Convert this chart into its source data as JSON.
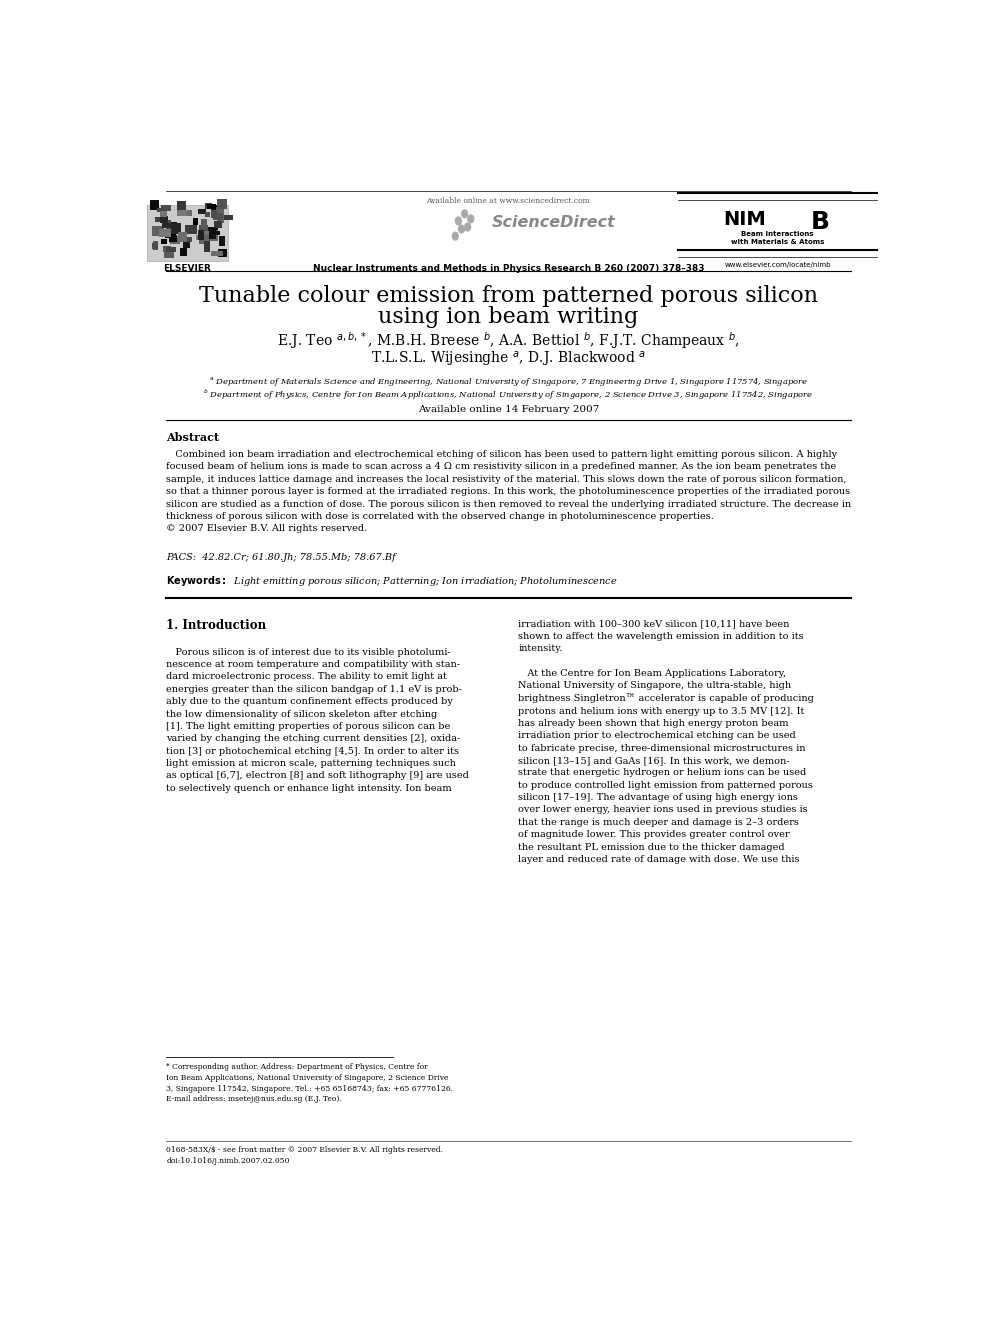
{
  "page_width": 9.92,
  "page_height": 13.23,
  "bg_color": "#ffffff",
  "text_color": "#000000",
  "header_available_online": "Available online at www.sciencedirect.com",
  "header_journal_name": "Nuclear Instruments and Methods in Physics Research B 260 (2007) 378–383",
  "header_sciencedirect": "ScienceDirect",
  "header_nimb_line2": "Beam Interactions",
  "header_nimb_line3": "with Materials & Atoms",
  "header_website": "www.elsevier.com/locate/nimb",
  "header_elsevier": "ELSEVIER",
  "title_line1": "Tunable colour emission from patterned porous silicon",
  "title_line2": "using ion beam writing",
  "authors_line1": "E.J. Teo $^{a,b,*}$, M.B.H. Breese $^{b}$, A.A. Bettiol $^{b}$, F.J.T. Champeaux $^{b}$,",
  "authors_line2": "T.L.S.L. Wijesinghe $^{a}$, D.J. Blackwood $^{a}$",
  "affil_a": "$^{a}$ Department of Materials Science and Engineering, National University of Singapore, 7 Engineering Drive 1, Singapore 117574, Singapore",
  "affil_b": "$^{b}$ Department of Physics, Centre for Ion Beam Applications, National University of Singapore, 2 Science Drive 3, Singapore 117542, Singapore",
  "available_online_date": "Available online 14 February 2007",
  "abstract_title": "Abstract",
  "abstract_line1": "   Combined ion beam irradiation and electrochemical etching of silicon has been used to pattern light emitting porous silicon. A highly",
  "abstract_line2": "focused beam of helium ions is made to scan across a 4 Ω cm resistivity silicon in a predefined manner. As the ion beam penetrates the",
  "abstract_line3": "sample, it induces lattice damage and increases the local resistivity of the material. This slows down the rate of porous silicon formation,",
  "abstract_line4": "so that a thinner porous layer is formed at the irradiated regions. In this work, the photoluminescence properties of the irradiated porous",
  "abstract_line5": "silicon are studied as a function of dose. The porous silicon is then removed to reveal the underlying irradiated structure. The decrease in",
  "abstract_line6": "thickness of porous silicon with dose is correlated with the observed change in photoluminescence properties.",
  "abstract_copyright": "© 2007 Elsevier B.V. All rights reserved.",
  "pacs": "PACS:  42.82.Cr; 61.80.Jh; 78.55.Mb; 78.67.Bf",
  "keywords_bold": "Keywords:",
  "keywords_rest": "  Light emitting porous silicon; Patterning; Ion irradiation; Photoluminescence",
  "section1_title": "1. Introduction",
  "col1_line1": "   Porous silicon is of interest due to its visible photolumi-",
  "col1_line2": "nescence at room temperature and compatibility with stan-",
  "col1_line3": "dard microelectronic process. The ability to emit light at",
  "col1_line4": "energies greater than the silicon bandgap of 1.1 eV is prob-",
  "col1_line5": "ably due to the quantum confinement effects produced by",
  "col1_line6": "the low dimensionality of silicon skeleton after etching",
  "col1_line7": "[1]. The light emitting properties of porous silicon can be",
  "col1_line8": "varied by changing the etching current densities [2], oxida-",
  "col1_line9": "tion [3] or photochemical etching [4,5]. In order to alter its",
  "col1_line10": "light emission at micron scale, patterning techniques such",
  "col1_line11": "as optical [6,7], electron [8] and soft lithography [9] are used",
  "col1_line12": "to selectively quench or enhance light intensity. Ion beam",
  "col2_line1": "irradiation with 100–300 keV silicon [10,11] have been",
  "col2_line2": "shown to affect the wavelength emission in addition to its",
  "col2_line3": "intensity.",
  "col2_line4": "",
  "col2_line5": "   At the Centre for Ion Beam Applications Laboratory,",
  "col2_line6": "National University of Singapore, the ultra-stable, high",
  "col2_line7": "brightness Singletron™ accelerator is capable of producing",
  "col2_line8": "protons and helium ions with energy up to 3.5 MV [12]. It",
  "col2_line9": "has already been shown that high energy proton beam",
  "col2_line10": "irradiation prior to electrochemical etching can be used",
  "col2_line11": "to fabricate precise, three-dimensional microstructures in",
  "col2_line12": "silicon [13–15] and GaAs [16]. In this work, we demon-",
  "col2_line13": "strate that energetic hydrogen or helium ions can be used",
  "col2_line14": "to produce controlled light emission from patterned porous",
  "col2_line15": "silicon [17–19]. The advantage of using high energy ions",
  "col2_line16": "over lower energy, heavier ions used in previous studies is",
  "col2_line17": "that the range is much deeper and damage is 2–3 orders",
  "col2_line18": "of magnitude lower. This provides greater control over",
  "col2_line19": "the resultant PL emission due to the thicker damaged",
  "col2_line20": "layer and reduced rate of damage with dose. We use this",
  "footnote_line1": "* Corresponding author. Address: Department of Physics, Centre for",
  "footnote_line2": "Ion Beam Applications, National University of Singapore, 2 Science Drive",
  "footnote_line3": "3, Singapore 117542, Singapore. Tel.: +65 65168743; fax: +65 67776126.",
  "footnote_line4": "E-mail address: msetej@nus.edu.sg (E.J. Teo).",
  "copyright_footer1": "0168-583X/$ - see front matter © 2007 Elsevier B.V. All rights reserved.",
  "copyright_footer2": "doi:10.1016/j.nimb.2007.02.050"
}
